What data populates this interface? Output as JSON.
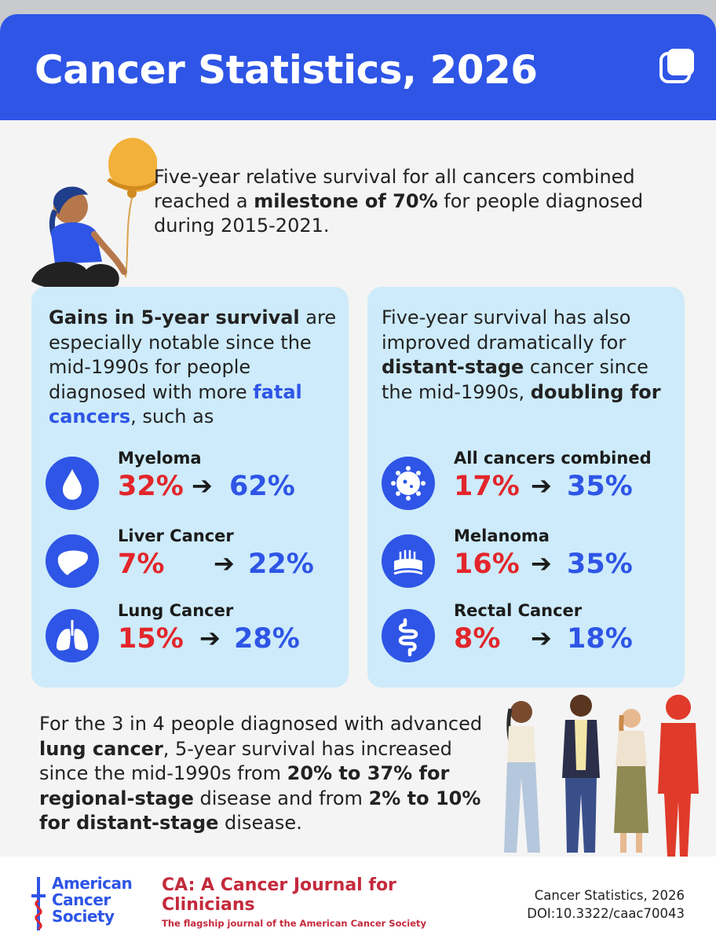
{
  "header": {
    "title": "Cancer Statistics, 2026",
    "corner_icon": "copy-icon",
    "bg_color": "#2e55e6"
  },
  "intro": {
    "text_before": "Five-year relative survival for all cancers combined reached a ",
    "text_bold": "milestone of 70%",
    "text_after": " for people diagnosed during 2015-2021."
  },
  "left_panel": {
    "intro_bold": "Gains in 5-year survival",
    "intro_mid": " are especially notable since the mid-1990s for people diagnosed with more ",
    "intro_highlight": "fatal cancers",
    "intro_end": ", such as",
    "stats": [
      {
        "name": "Myeloma",
        "from": "32%",
        "to": "62%",
        "icon": "drop-icon"
      },
      {
        "name": "Liver Cancer",
        "from": "7%",
        "to": "22%",
        "icon": "liver-icon"
      },
      {
        "name": "Lung Cancer",
        "from": "15%",
        "to": "28%",
        "icon": "lungs-icon"
      }
    ]
  },
  "right_panel": {
    "intro_start": "Five-year survival has also improved dramatically for ",
    "intro_bold": "distant-stage",
    "intro_mid": " cancer since the mid-1990s, ",
    "intro_bold2": "doubling for",
    "stats": [
      {
        "name": "All cancers combined",
        "from": "17%",
        "to": "35%",
        "icon": "cell-icon"
      },
      {
        "name": "Melanoma",
        "from": "16%",
        "to": "35%",
        "icon": "skin-icon"
      },
      {
        "name": "Rectal Cancer",
        "from": "8%",
        "to": "18%",
        "icon": "intestine-icon"
      }
    ]
  },
  "arrow": "➔",
  "bottom": {
    "t1": "For the 3 in 4 people diagnosed with advanced ",
    "t2": "lung cancer",
    "t3": ", 5-year survival has increased since the mid-1990s from ",
    "t4": "20% to 37% for regional-stage",
    "t5": " disease and from ",
    "t6": "2% to 10% for distant-stage",
    "t7": " disease."
  },
  "footer": {
    "acs_name": "American Cancer Society",
    "journal_title": "CA: A Cancer Journal for Clinicians",
    "journal_tagline": "The flagship journal of the American Cancer Society",
    "cite_title": "Cancer Statistics, 2026",
    "cite_doi": "DOI:10.3322/caac70043"
  },
  "colors": {
    "accent_blue": "#2e55e6",
    "stat_red": "#e2262b",
    "panel_bg": "#cdebfa",
    "journal_red": "#c42a3c"
  }
}
